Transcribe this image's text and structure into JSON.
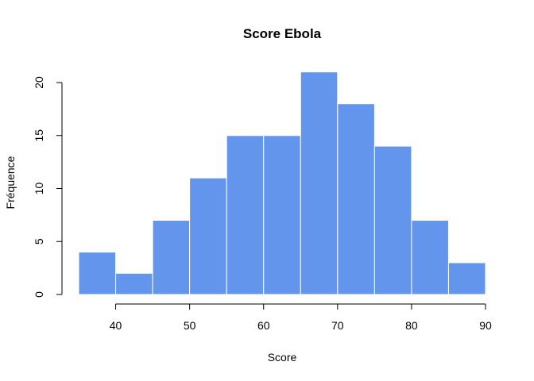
{
  "chart_data": {
    "type": "bar",
    "title": "Score Ebola",
    "xlabel": "Score",
    "ylabel": "Fréquence",
    "bin_edges": [
      35,
      40,
      45,
      50,
      55,
      60,
      65,
      70,
      75,
      80,
      85,
      90
    ],
    "values": [
      4,
      2,
      7,
      11,
      15,
      15,
      21,
      18,
      14,
      7,
      3
    ],
    "xlim": [
      35,
      90
    ],
    "ylim": [
      0,
      21
    ],
    "x_ticks": [
      40,
      50,
      60,
      70,
      80,
      90
    ],
    "y_ticks": [
      0,
      5,
      10,
      15,
      20
    ],
    "bar_color": "#6495ED",
    "grid": false
  }
}
